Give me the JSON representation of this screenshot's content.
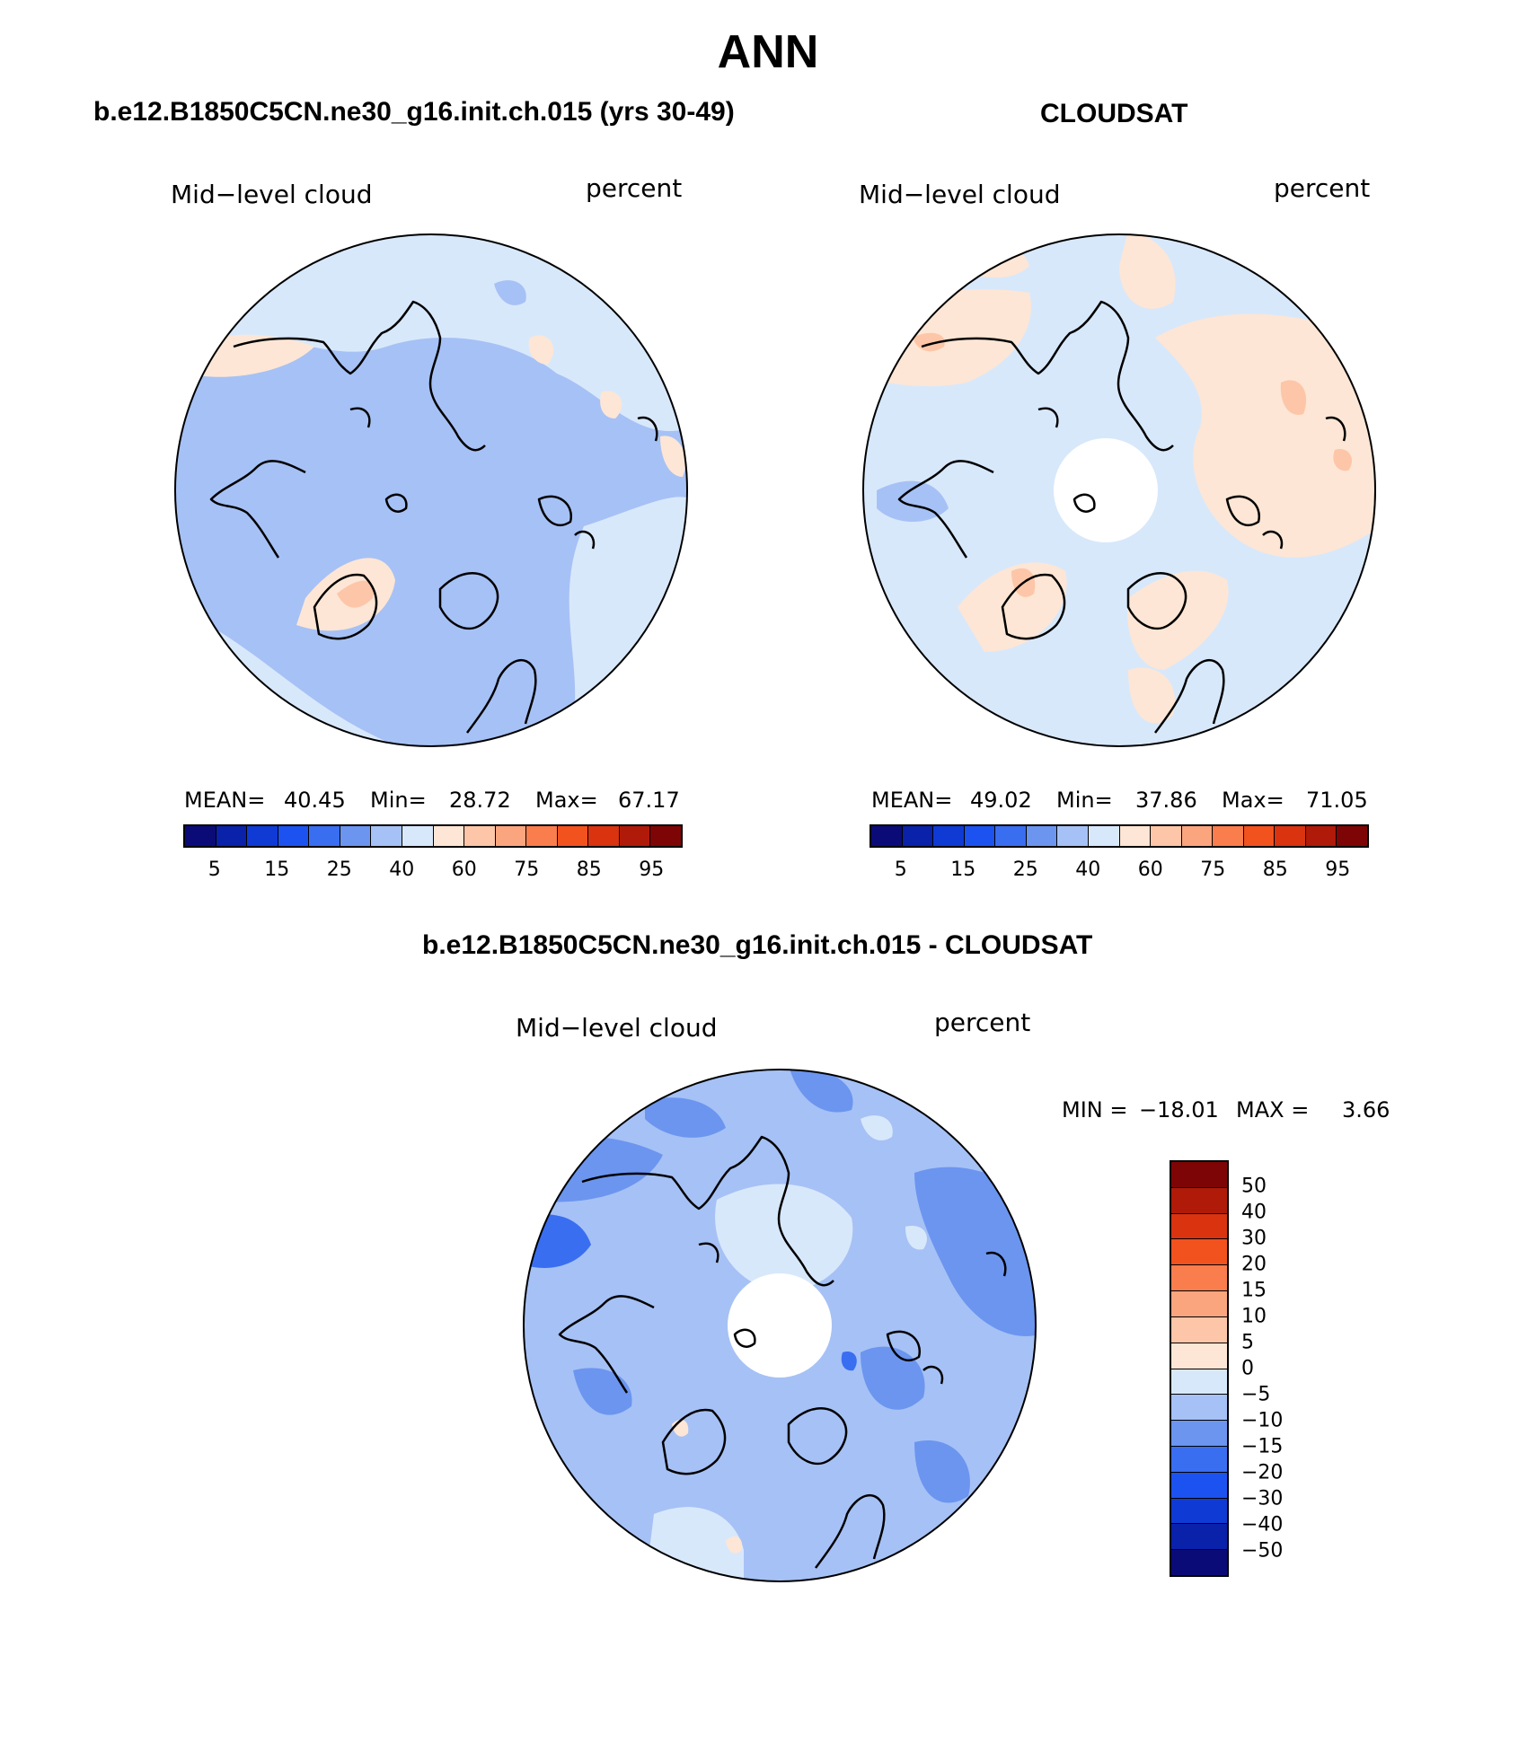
{
  "figure": {
    "season": "ANN"
  },
  "panels": {
    "model": {
      "title": "b.e12.B1850C5CN.ne30_g16.init.ch.015 (yrs 30-49)",
      "variable": "Mid−level cloud",
      "units": "percent",
      "mean_label": "MEAN=",
      "mean_value": "40.45",
      "min_label": "Min=",
      "min_value": "28.72",
      "max_label": "Max=",
      "max_value": "67.17"
    },
    "obs": {
      "title": "CLOUDSAT",
      "variable": "Mid−level cloud",
      "units": "percent",
      "mean_label": "MEAN=",
      "mean_value": "49.02",
      "min_label": "Min=",
      "min_value": "37.86",
      "max_label": "Max=",
      "max_value": "71.05"
    },
    "diff": {
      "title": "b.e12.B1850C5CN.ne30_g16.init.ch.015 - CLOUDSAT",
      "variable": "Mid−level cloud",
      "units": "percent",
      "min_label": "MIN =",
      "min_value": "−18.01",
      "max_label": "MAX =",
      "max_value": "3.66"
    }
  },
  "colorbar_main": {
    "colors": [
      "#0b0b78",
      "#0a21aa",
      "#0f3bd4",
      "#1c52f0",
      "#3a6ef0",
      "#6b95ef",
      "#a6c1f5",
      "#d8e8fb",
      "#fde6d5",
      "#fdc6a8",
      "#fba57e",
      "#fa7d4d",
      "#f2521e",
      "#d93310",
      "#b01a08",
      "#7e0505"
    ],
    "tick_labels": [
      "5",
      "15",
      "25",
      "40",
      "60",
      "75",
      "85",
      "95"
    ]
  },
  "colorbar_diff": {
    "colors_top_to_bottom": [
      "#7e0505",
      "#b01a08",
      "#d93310",
      "#f2521e",
      "#fa7d4d",
      "#fba57e",
      "#fdc6a8",
      "#fde6d5",
      "#d8e8fb",
      "#a6c1f5",
      "#6b95ef",
      "#3a6ef0",
      "#1c52f0",
      "#0f3bd4",
      "#0a21aa",
      "#0b0b78"
    ],
    "tick_labels": [
      "50",
      "40",
      "30",
      "20",
      "15",
      "10",
      "5",
      "0",
      "−5",
      "−10",
      "−15",
      "−20",
      "−30",
      "−40",
      "−50"
    ]
  }
}
